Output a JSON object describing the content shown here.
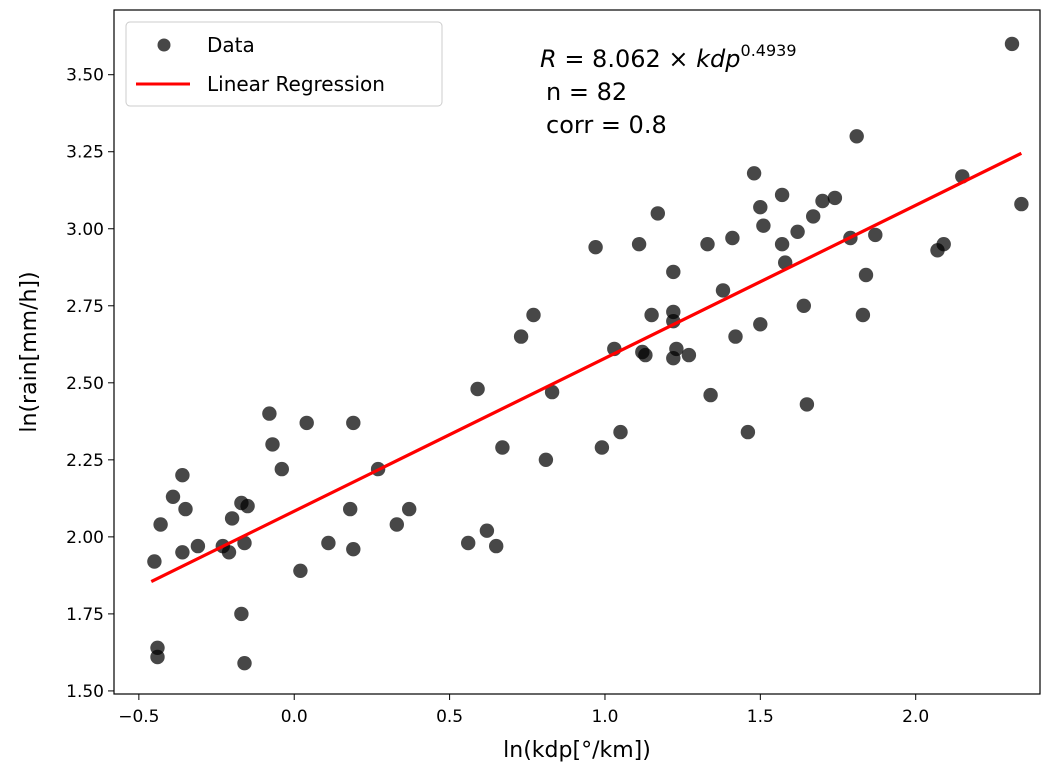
{
  "chart_data": {
    "type": "scatter",
    "title": "",
    "xlabel": "ln(kdp[°/km])",
    "ylabel": "ln(rain[mm/h])",
    "xlim": [
      -0.58,
      2.4
    ],
    "ylim": [
      1.49,
      3.71
    ],
    "xticks": [
      -0.5,
      0.0,
      0.5,
      1.0,
      1.5,
      2.0
    ],
    "xtick_labels": [
      "−0.5",
      "0.0",
      "0.5",
      "1.0",
      "1.5",
      "2.0"
    ],
    "yticks": [
      1.5,
      1.75,
      2.0,
      2.25,
      2.5,
      2.75,
      3.0,
      3.25,
      3.5
    ],
    "ytick_labels": [
      "1.50",
      "1.75",
      "2.00",
      "2.25",
      "2.50",
      "2.75",
      "3.00",
      "3.25",
      "3.50"
    ],
    "grid": false,
    "legend_position": "top-left",
    "legend": {
      "data_label": "Data",
      "fit_label": "Linear Regression"
    },
    "colors": {
      "points": "#000000",
      "fit": "#ff0000"
    },
    "annotation": {
      "eq_prefix": "R",
      "eq_middle": " = 8.062 × ",
      "eq_var": "kdp",
      "eq_exponent": "0.4939",
      "line_n": "n = 82",
      "line_corr": "corr = 0.8"
    },
    "fit": {
      "x": [
        -0.46,
        2.34
      ],
      "y": [
        1.855,
        3.245
      ]
    },
    "points": [
      {
        "x": -0.45,
        "y": 1.92
      },
      {
        "x": -0.43,
        "y": 2.04
      },
      {
        "x": -0.44,
        "y": 1.64
      },
      {
        "x": -0.44,
        "y": 1.61
      },
      {
        "x": -0.39,
        "y": 2.13
      },
      {
        "x": -0.36,
        "y": 2.2
      },
      {
        "x": -0.35,
        "y": 2.09
      },
      {
        "x": -0.36,
        "y": 1.95
      },
      {
        "x": -0.31,
        "y": 1.97
      },
      {
        "x": -0.23,
        "y": 1.97
      },
      {
        "x": -0.21,
        "y": 1.95
      },
      {
        "x": -0.2,
        "y": 2.06
      },
      {
        "x": -0.17,
        "y": 2.11
      },
      {
        "x": -0.15,
        "y": 2.1
      },
      {
        "x": -0.16,
        "y": 1.98
      },
      {
        "x": -0.17,
        "y": 1.75
      },
      {
        "x": -0.16,
        "y": 1.59
      },
      {
        "x": -0.08,
        "y": 2.4
      },
      {
        "x": -0.07,
        "y": 2.3
      },
      {
        "x": -0.04,
        "y": 2.22
      },
      {
        "x": 0.02,
        "y": 1.89
      },
      {
        "x": 0.04,
        "y": 2.37
      },
      {
        "x": 0.11,
        "y": 1.98
      },
      {
        "x": 0.18,
        "y": 2.09
      },
      {
        "x": 0.19,
        "y": 2.37
      },
      {
        "x": 0.19,
        "y": 1.96
      },
      {
        "x": 0.27,
        "y": 2.22
      },
      {
        "x": 0.33,
        "y": 2.04
      },
      {
        "x": 0.37,
        "y": 2.09
      },
      {
        "x": 0.56,
        "y": 1.98
      },
      {
        "x": 0.59,
        "y": 2.48
      },
      {
        "x": 0.62,
        "y": 2.02
      },
      {
        "x": 0.65,
        "y": 1.97
      },
      {
        "x": 0.67,
        "y": 2.29
      },
      {
        "x": 0.73,
        "y": 2.65
      },
      {
        "x": 0.77,
        "y": 2.72
      },
      {
        "x": 0.81,
        "y": 2.25
      },
      {
        "x": 0.83,
        "y": 2.47
      },
      {
        "x": 0.97,
        "y": 2.94
      },
      {
        "x": 0.99,
        "y": 2.29
      },
      {
        "x": 1.03,
        "y": 2.61
      },
      {
        "x": 1.05,
        "y": 2.34
      },
      {
        "x": 1.11,
        "y": 2.95
      },
      {
        "x": 1.12,
        "y": 2.6
      },
      {
        "x": 1.13,
        "y": 2.59
      },
      {
        "x": 1.15,
        "y": 2.72
      },
      {
        "x": 1.17,
        "y": 3.05
      },
      {
        "x": 1.22,
        "y": 2.86
      },
      {
        "x": 1.22,
        "y": 2.73
      },
      {
        "x": 1.22,
        "y": 2.7
      },
      {
        "x": 1.22,
        "y": 2.58
      },
      {
        "x": 1.23,
        "y": 2.61
      },
      {
        "x": 1.27,
        "y": 2.59
      },
      {
        "x": 1.33,
        "y": 2.95
      },
      {
        "x": 1.34,
        "y": 2.46
      },
      {
        "x": 1.38,
        "y": 2.8
      },
      {
        "x": 1.41,
        "y": 2.97
      },
      {
        "x": 1.42,
        "y": 2.65
      },
      {
        "x": 1.46,
        "y": 2.34
      },
      {
        "x": 1.48,
        "y": 3.18
      },
      {
        "x": 1.5,
        "y": 3.07
      },
      {
        "x": 1.5,
        "y": 2.69
      },
      {
        "x": 1.51,
        "y": 3.01
      },
      {
        "x": 1.57,
        "y": 3.11
      },
      {
        "x": 1.57,
        "y": 2.95
      },
      {
        "x": 1.58,
        "y": 2.89
      },
      {
        "x": 1.62,
        "y": 2.99
      },
      {
        "x": 1.64,
        "y": 2.75
      },
      {
        "x": 1.65,
        "y": 2.43
      },
      {
        "x": 1.67,
        "y": 3.04
      },
      {
        "x": 1.7,
        "y": 3.09
      },
      {
        "x": 1.74,
        "y": 3.1
      },
      {
        "x": 1.79,
        "y": 2.97
      },
      {
        "x": 1.81,
        "y": 3.3
      },
      {
        "x": 1.83,
        "y": 2.72
      },
      {
        "x": 1.84,
        "y": 2.85
      },
      {
        "x": 1.87,
        "y": 2.98
      },
      {
        "x": 2.07,
        "y": 2.93
      },
      {
        "x": 2.09,
        "y": 2.95
      },
      {
        "x": 2.15,
        "y": 3.17
      },
      {
        "x": 2.31,
        "y": 3.6
      },
      {
        "x": 2.34,
        "y": 3.08
      }
    ]
  }
}
